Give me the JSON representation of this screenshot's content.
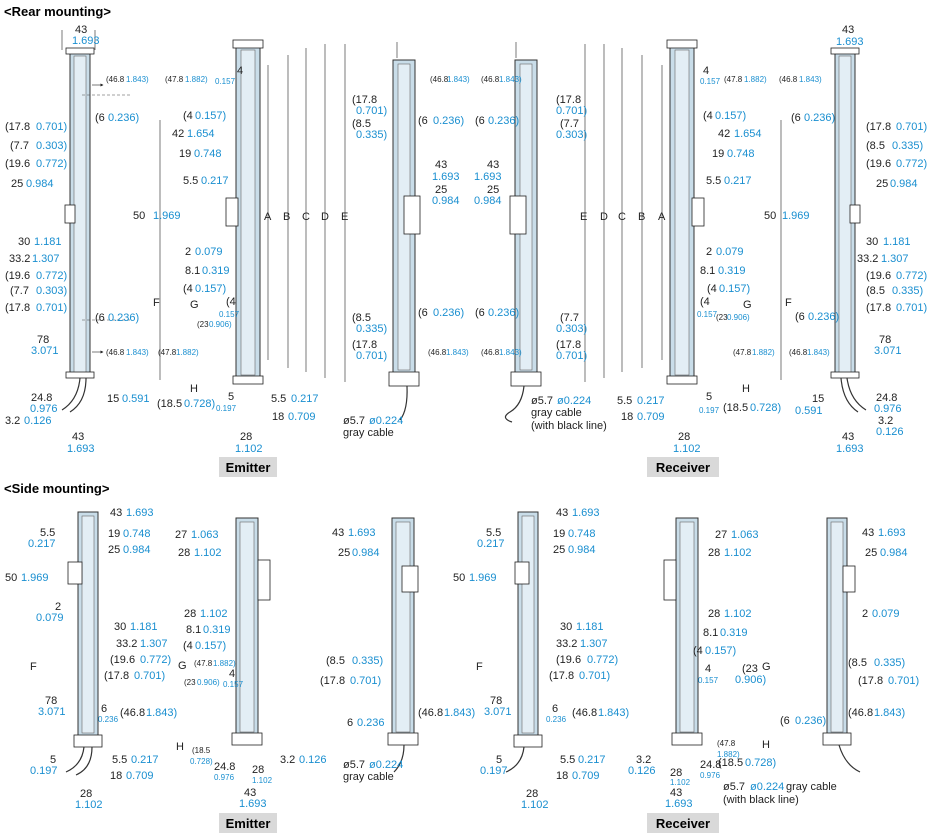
{
  "headings": {
    "rear": "<Rear mounting>",
    "side": "<Side mounting>"
  },
  "labels": {
    "emitter": "Emitter",
    "receiver": "Receiver"
  },
  "letters": {
    "A": "A",
    "B": "B",
    "C": "C",
    "D": "D",
    "E": "E",
    "F": "F",
    "G": "G",
    "H": "H"
  },
  "cable": {
    "dia": "ø5.7",
    "dia_in": "ø0.224",
    "gray": "gray cable",
    "black_line": "(with black line)"
  },
  "dims": {
    "d43": "43",
    "d43i": "1.693",
    "d46_8": "(46.8",
    "d46_8i": "1.843)",
    "d47_8": "(47.8",
    "d47_8i": "1.882)",
    "d4": "4",
    "d4i": "0.157",
    "d4p": "(4",
    "d4pi": "0.157)",
    "d17_8": "(17.8",
    "d17_8i": "0.701)",
    "d7_7": "(7.7",
    "d7_7i": "0.303)",
    "d19_6": "(19.6",
    "d19_6i": "0.772)",
    "d25": "25",
    "d25i": "0.984",
    "d6": "(6",
    "d6i": "0.236)",
    "d6s": "6",
    "d6si": "0.236",
    "d42": "42",
    "d42i": "1.654",
    "d19": "19",
    "d19i": "0.748",
    "d5_5": "5.5",
    "d5_5i": "0.217",
    "d50": "50",
    "d50i": "1.969",
    "d2": "2",
    "d2i": "0.079",
    "d8_1": "8.1",
    "d8_1i": "0.319",
    "d30": "30",
    "d30i": "1.181",
    "d33_2": "33.2",
    "d33_2i": "1.307",
    "d8_5": "(8.5",
    "d8_5i": "0.335)",
    "d78": "78",
    "d78i": "3.071",
    "d24_8": "24.8",
    "d24_8i": "0.976",
    "d3_2": "3.2",
    "d3_2i": "0.126",
    "d15": "15",
    "d15i": "0.591",
    "d18_5": "(18.5",
    "d18_5i": "0.728)",
    "d5": "5",
    "d5i": "0.197",
    "d18": "18",
    "d18i": "0.709",
    "d28": "28",
    "d28i": "1.102",
    "d23": "(23",
    "d23i": "0.906)",
    "d27": "27",
    "d27i": "1.063"
  }
}
